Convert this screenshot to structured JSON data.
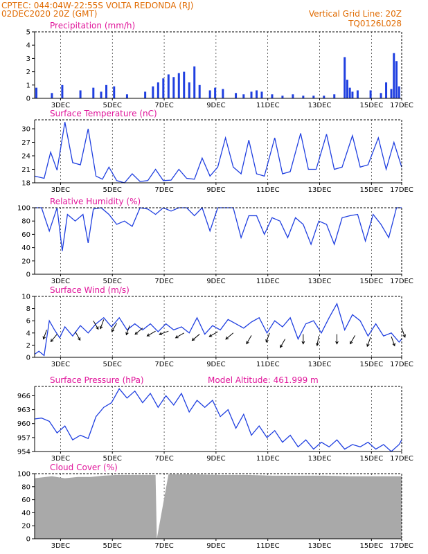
{
  "header": {
    "line1": "CPTEC:    044:04W-22:55S   VOLTA REDONDA (RJ)",
    "line2_left": "02DEC2020 20Z (GMT)",
    "line2_right": "Vertical Grid Line: 20Z",
    "line3_right": "TQ0126L028"
  },
  "colors": {
    "header": "#e06a00",
    "titles": "#e0159a",
    "series": "#1f3fe0",
    "cloud": "#a9a9a9",
    "wind_arrow": "#000000"
  },
  "chart_data": [
    {
      "type": "bar",
      "title": "Precipitation (mm/h)",
      "ylim": [
        0,
        5
      ],
      "yticks": [
        0,
        1,
        2,
        3,
        4,
        5
      ],
      "xticks": [
        "3DEC",
        "5DEC",
        "7DEC",
        "9DEC",
        "11DEC",
        "13DEC",
        "15DEC",
        "17DEC"
      ],
      "xlim_days": [
        2.833,
        17.0
      ],
      "series": [
        {
          "x": [
            2.9,
            3.5,
            3.9,
            4.6,
            5.1,
            5.4,
            5.6,
            5.9,
            6.4,
            7.1,
            7.4,
            7.6,
            7.8,
            8.0,
            8.2,
            8.4,
            8.6,
            8.8,
            9.0,
            9.2,
            9.6,
            9.8,
            10.1,
            10.6,
            10.9,
            11.2,
            11.4,
            11.6,
            12.0,
            12.4,
            12.8,
            13.2,
            13.6,
            14.0,
            14.4,
            14.8,
            14.9,
            15.0,
            15.1,
            15.3,
            15.8,
            16.2,
            16.4,
            16.6,
            16.7,
            16.8,
            16.9
          ],
          "values": [
            0.8,
            0.4,
            1.0,
            0.6,
            0.8,
            0.5,
            1.0,
            0.9,
            0.3,
            0.5,
            0.9,
            1.2,
            1.5,
            1.8,
            1.6,
            1.9,
            2.0,
            1.2,
            2.4,
            1.0,
            0.6,
            0.8,
            0.7,
            0.4,
            0.3,
            0.5,
            0.6,
            0.5,
            0.3,
            0.2,
            0.3,
            0.2,
            0.2,
            0.2,
            0.3,
            3.1,
            1.4,
            0.8,
            0.5,
            0.6,
            0.6,
            0.4,
            1.2,
            0.7,
            3.4,
            2.8,
            0.9
          ]
        }
      ]
    },
    {
      "type": "line",
      "title": "Surface Temperature (nC)",
      "ylim": [
        18,
        32
      ],
      "yticks": [
        18,
        21,
        24,
        27,
        30
      ],
      "xticks": [
        "3DEC",
        "5DEC",
        "7DEC",
        "9DEC",
        "11DEC",
        "13DEC",
        "15DEC",
        "17DEC"
      ],
      "series": [
        {
          "x": [
            2.83,
            3.2,
            3.45,
            3.7,
            4.0,
            4.3,
            4.6,
            4.9,
            5.2,
            5.45,
            5.7,
            6.0,
            6.3,
            6.6,
            6.9,
            7.2,
            7.5,
            7.8,
            8.1,
            8.4,
            8.7,
            9.0,
            9.3,
            9.6,
            9.9,
            10.2,
            10.5,
            10.8,
            11.1,
            11.4,
            11.7,
            12.1,
            12.4,
            12.7,
            13.1,
            13.4,
            13.7,
            14.1,
            14.4,
            14.7,
            15.1,
            15.4,
            15.7,
            16.1,
            16.4,
            16.7,
            17.0
          ],
          "values": [
            19.5,
            19.0,
            24.8,
            20.8,
            31.5,
            22.5,
            22.0,
            30.0,
            19.5,
            18.8,
            21.5,
            18.5,
            18.0,
            20.0,
            18.3,
            18.5,
            21.0,
            18.5,
            18.6,
            21.0,
            19.0,
            18.8,
            23.5,
            19.5,
            21.5,
            28.0,
            21.5,
            20.0,
            27.5,
            20.0,
            19.5,
            28.0,
            20.0,
            20.5,
            29.0,
            21.0,
            21.0,
            28.8,
            21.0,
            21.5,
            28.5,
            21.5,
            22.0,
            28.0,
            21.0,
            27.0,
            21.5
          ]
        }
      ]
    },
    {
      "type": "line",
      "title": "Relative Humidity (%)",
      "ylim": [
        0,
        100
      ],
      "yticks": [
        0,
        20,
        40,
        60,
        80,
        100
      ],
      "xticks": [
        "3DEC",
        "5DEC",
        "7DEC",
        "9DEC",
        "11DEC",
        "13DEC",
        "15DEC",
        "17DEC"
      ],
      "series": [
        {
          "x": [
            2.83,
            3.1,
            3.4,
            3.7,
            3.9,
            4.1,
            4.4,
            4.7,
            4.9,
            5.1,
            5.4,
            5.7,
            6.0,
            6.3,
            6.6,
            6.9,
            7.2,
            7.5,
            7.8,
            8.1,
            8.4,
            8.7,
            9.0,
            9.3,
            9.6,
            9.9,
            10.2,
            10.5,
            10.8,
            11.1,
            11.4,
            11.7,
            12.0,
            12.3,
            12.6,
            12.9,
            13.2,
            13.5,
            13.8,
            14.1,
            14.4,
            14.7,
            15.0,
            15.3,
            15.6,
            15.9,
            16.2,
            16.5,
            16.8,
            17.0
          ],
          "values": [
            100,
            100,
            65,
            100,
            35,
            90,
            80,
            90,
            47,
            98,
            100,
            90,
            75,
            80,
            72,
            100,
            98,
            90,
            100,
            95,
            100,
            100,
            88,
            100,
            65,
            100,
            100,
            100,
            55,
            88,
            88,
            60,
            85,
            80,
            55,
            85,
            75,
            45,
            80,
            75,
            45,
            85,
            88,
            90,
            50,
            90,
            75,
            55,
            100,
            100
          ]
        }
      ]
    },
    {
      "type": "line",
      "title": "Surface Wind (m/s)",
      "ylim": [
        0,
        10
      ],
      "yticks": [
        0,
        2,
        4,
        6,
        8,
        10
      ],
      "xticks": [
        "3DEC",
        "5DEC",
        "7DEC",
        "9DEC",
        "11DEC",
        "13DEC",
        "15DEC",
        "17DEC"
      ],
      "series": [
        {
          "x": [
            2.83,
            3.0,
            3.2,
            3.4,
            3.6,
            3.8,
            4.0,
            4.3,
            4.6,
            4.9,
            5.2,
            5.5,
            5.8,
            6.1,
            6.4,
            6.7,
            7.0,
            7.3,
            7.6,
            7.9,
            8.2,
            8.5,
            8.8,
            9.1,
            9.4,
            9.7,
            10.0,
            10.3,
            10.6,
            10.9,
            11.2,
            11.5,
            11.8,
            12.1,
            12.4,
            12.7,
            13.0,
            13.3,
            13.6,
            13.9,
            14.2,
            14.5,
            14.8,
            15.1,
            15.4,
            15.7,
            16.0,
            16.3,
            16.6,
            16.9,
            17.0
          ],
          "values": [
            0.5,
            1.0,
            0.3,
            6.0,
            4.5,
            3.2,
            5.0,
            3.5,
            5.2,
            4.0,
            5.5,
            6.5,
            5.0,
            6.5,
            4.5,
            5.5,
            4.5,
            5.5,
            4.2,
            5.5,
            4.5,
            5.0,
            4.0,
            6.5,
            3.8,
            5.2,
            4.5,
            6.2,
            5.5,
            4.8,
            5.8,
            6.5,
            4.0,
            6.0,
            5.0,
            6.5,
            3.0,
            5.5,
            6.0,
            4.0,
            6.5,
            8.8,
            4.5,
            7.0,
            6.0,
            3.5,
            5.5,
            3.5,
            4.0,
            2.5,
            3.0
          ]
        }
      ],
      "arrows_note": "wind direction arrows",
      "arrows": [
        {
          "x": 3.3,
          "y": 4.5,
          "dir": 200
        },
        {
          "x": 3.7,
          "y": 3.8,
          "dir": 220
        },
        {
          "x": 4.4,
          "y": 4.2,
          "dir": 150
        },
        {
          "x": 5.1,
          "y": 6.0,
          "dir": 150
        },
        {
          "x": 5.5,
          "y": 6.2,
          "dir": 200
        },
        {
          "x": 6.0,
          "y": 5.6,
          "dir": 210
        },
        {
          "x": 6.5,
          "y": 5.2,
          "dir": 200
        },
        {
          "x": 7.0,
          "y": 4.8,
          "dir": 230
        },
        {
          "x": 7.5,
          "y": 4.3,
          "dir": 240
        },
        {
          "x": 8.0,
          "y": 4.3,
          "dir": 250
        },
        {
          "x": 8.6,
          "y": 4.0,
          "dir": 240
        },
        {
          "x": 9.2,
          "y": 3.8,
          "dir": 230
        },
        {
          "x": 9.9,
          "y": 4.2,
          "dir": 240
        },
        {
          "x": 10.5,
          "y": 4.0,
          "dir": 230
        },
        {
          "x": 11.2,
          "y": 3.6,
          "dir": 210
        },
        {
          "x": 11.9,
          "y": 4.0,
          "dir": 200
        },
        {
          "x": 12.5,
          "y": 3.0,
          "dir": 210
        },
        {
          "x": 13.2,
          "y": 3.8,
          "dir": 180
        },
        {
          "x": 13.8,
          "y": 3.5,
          "dir": 190
        },
        {
          "x": 14.5,
          "y": 3.8,
          "dir": 180
        },
        {
          "x": 15.2,
          "y": 3.6,
          "dir": 210
        },
        {
          "x": 15.8,
          "y": 3.3,
          "dir": 200
        },
        {
          "x": 16.6,
          "y": 3.4,
          "dir": 160
        },
        {
          "x": 17.0,
          "y": 4.8,
          "dir": 160
        }
      ]
    },
    {
      "type": "line",
      "title": "Surface Pressure (hPa)",
      "annotation": "Model Altitude: 461.999  m",
      "ylim": [
        954,
        968
      ],
      "yticks": [
        954,
        957,
        960,
        963,
        966
      ],
      "xticks": [
        "3DEC",
        "5DEC",
        "7DEC",
        "9DEC",
        "11DEC",
        "13DEC",
        "15DEC",
        "17DEC"
      ],
      "series": [
        {
          "x": [
            2.83,
            3.1,
            3.4,
            3.7,
            4.0,
            4.3,
            4.6,
            4.9,
            5.2,
            5.5,
            5.8,
            6.1,
            6.4,
            6.7,
            7.0,
            7.3,
            7.6,
            7.9,
            8.2,
            8.5,
            8.8,
            9.1,
            9.4,
            9.7,
            10.0,
            10.3,
            10.6,
            10.9,
            11.2,
            11.5,
            11.8,
            12.1,
            12.4,
            12.7,
            13.0,
            13.3,
            13.6,
            13.9,
            14.2,
            14.5,
            14.8,
            15.1,
            15.4,
            15.7,
            16.0,
            16.3,
            16.6,
            16.9,
            17.0
          ],
          "values": [
            961.0,
            961.2,
            960.5,
            958.0,
            959.5,
            956.5,
            957.5,
            956.8,
            961.5,
            963.5,
            964.5,
            967.5,
            965.5,
            967.0,
            964.5,
            966.5,
            963.5,
            966.0,
            964.0,
            966.5,
            962.5,
            965.0,
            963.5,
            965.0,
            961.5,
            963.0,
            959.0,
            962.0,
            957.5,
            959.5,
            957.0,
            958.5,
            956.0,
            957.5,
            955.0,
            956.5,
            954.5,
            956.0,
            955.0,
            956.5,
            954.5,
            955.5,
            955.0,
            956.0,
            954.5,
            955.5,
            954.0,
            955.5,
            956.5
          ]
        }
      ]
    },
    {
      "type": "area",
      "title": "Cloud Cover (%)",
      "ylim": [
        0,
        100
      ],
      "yticks": [
        0,
        20,
        40,
        60,
        80,
        100
      ],
      "xticks": [
        "3DEC",
        "5DEC",
        "7DEC",
        "9DEC",
        "11DEC",
        "13DEC",
        "15DEC",
        "17DEC"
      ],
      "series": [
        {
          "x": [
            2.83,
            3.5,
            4.0,
            4.5,
            5.0,
            5.5,
            6.0,
            6.5,
            7.0,
            7.5,
            7.55,
            8.0,
            9.0,
            10.0,
            11.0,
            12.0,
            13.0,
            14.0,
            15.0,
            16.0,
            17.0
          ],
          "values": [
            93,
            96,
            93,
            95,
            95,
            97,
            98,
            98,
            98,
            98,
            0,
            99,
            99,
            98,
            98,
            97,
            97,
            97,
            96,
            96,
            96
          ]
        }
      ]
    }
  ]
}
